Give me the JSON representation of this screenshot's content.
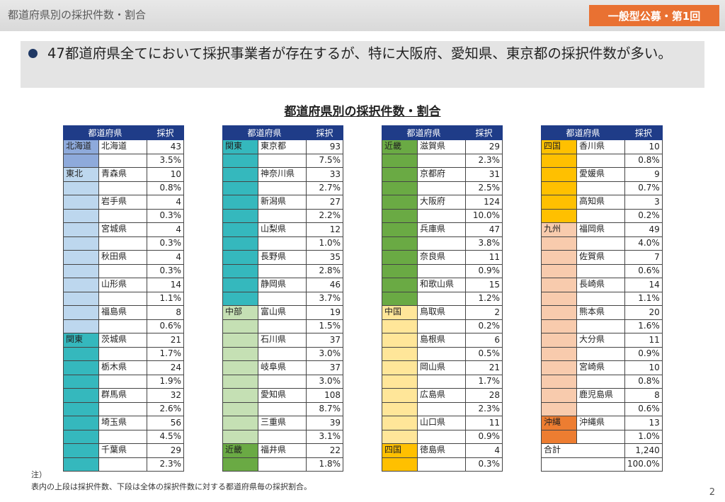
{
  "header": {
    "title": "都道府県別の採択件数・割合",
    "badge": "一般型公募・第1回"
  },
  "summary": {
    "text": "47都道府県全てにおいて採択事業者が存在するが、特に大阪府、愛知県、東京都の採択件数が多い。"
  },
  "table_title": "都道府県別の採択件数・割合",
  "columns": {
    "prefecture": "都道府県",
    "count": "採択"
  },
  "region_colors": {
    "北海道": "#8eaadb",
    "東北": "#bdd7ee",
    "関東": "#35b8bd",
    "中部": "#c5e0b4",
    "近畿": "#6aaa44",
    "中国": "#ffe699",
    "四国": "#ffc000",
    "九州": "#f8cbad",
    "沖縄": "#ed7d31"
  },
  "tables": [
    {
      "rows": [
        {
          "region": "北海道",
          "name": "北海道",
          "count": "43",
          "pct": "3.5%"
        },
        {
          "region": "東北",
          "name": "青森県",
          "count": "10",
          "pct": "0.8%"
        },
        {
          "region": "東北",
          "name": "岩手県",
          "count": "4",
          "pct": "0.3%"
        },
        {
          "region": "東北",
          "name": "宮城県",
          "count": "4",
          "pct": "0.3%"
        },
        {
          "region": "東北",
          "name": "秋田県",
          "count": "4",
          "pct": "0.3%"
        },
        {
          "region": "東北",
          "name": "山形県",
          "count": "14",
          "pct": "1.1%"
        },
        {
          "region": "東北",
          "name": "福島県",
          "count": "8",
          "pct": "0.6%"
        },
        {
          "region": "関東",
          "name": "茨城県",
          "count": "21",
          "pct": "1.7%"
        },
        {
          "region": "関東",
          "name": "栃木県",
          "count": "24",
          "pct": "1.9%"
        },
        {
          "region": "関東",
          "name": "群馬県",
          "count": "32",
          "pct": "2.6%"
        },
        {
          "region": "関東",
          "name": "埼玉県",
          "count": "56",
          "pct": "4.5%"
        },
        {
          "region": "関東",
          "name": "千葉県",
          "count": "29",
          "pct": "2.3%"
        }
      ]
    },
    {
      "rows": [
        {
          "region": "関東",
          "name": "東京都",
          "count": "93",
          "pct": "7.5%"
        },
        {
          "region": "関東",
          "name": "神奈川県",
          "count": "33",
          "pct": "2.7%"
        },
        {
          "region": "関東",
          "name": "新潟県",
          "count": "27",
          "pct": "2.2%"
        },
        {
          "region": "関東",
          "name": "山梨県",
          "count": "12",
          "pct": "1.0%"
        },
        {
          "region": "関東",
          "name": "長野県",
          "count": "35",
          "pct": "2.8%"
        },
        {
          "region": "関東",
          "name": "静岡県",
          "count": "46",
          "pct": "3.7%"
        },
        {
          "region": "中部",
          "name": "富山県",
          "count": "19",
          "pct": "1.5%"
        },
        {
          "region": "中部",
          "name": "石川県",
          "count": "37",
          "pct": "3.0%"
        },
        {
          "region": "中部",
          "name": "岐阜県",
          "count": "37",
          "pct": "3.0%"
        },
        {
          "region": "中部",
          "name": "愛知県",
          "count": "108",
          "pct": "8.7%"
        },
        {
          "region": "中部",
          "name": "三重県",
          "count": "39",
          "pct": "3.1%"
        },
        {
          "region": "近畿",
          "name": "福井県",
          "count": "22",
          "pct": "1.8%"
        }
      ]
    },
    {
      "rows": [
        {
          "region": "近畿",
          "name": "滋賀県",
          "count": "29",
          "pct": "2.3%"
        },
        {
          "region": "近畿",
          "name": "京都府",
          "count": "31",
          "pct": "2.5%"
        },
        {
          "region": "近畿",
          "name": "大阪府",
          "count": "124",
          "pct": "10.0%"
        },
        {
          "region": "近畿",
          "name": "兵庫県",
          "count": "47",
          "pct": "3.8%"
        },
        {
          "region": "近畿",
          "name": "奈良県",
          "count": "11",
          "pct": "0.9%"
        },
        {
          "region": "近畿",
          "name": "和歌山県",
          "count": "15",
          "pct": "1.2%"
        },
        {
          "region": "中国",
          "name": "鳥取県",
          "count": "2",
          "pct": "0.2%"
        },
        {
          "region": "中国",
          "name": "島根県",
          "count": "6",
          "pct": "0.5%"
        },
        {
          "region": "中国",
          "name": "岡山県",
          "count": "21",
          "pct": "1.7%"
        },
        {
          "region": "中国",
          "name": "広島県",
          "count": "28",
          "pct": "2.3%"
        },
        {
          "region": "中国",
          "name": "山口県",
          "count": "11",
          "pct": "0.9%"
        },
        {
          "region": "四国",
          "name": "徳島県",
          "count": "4",
          "pct": "0.3%"
        }
      ]
    },
    {
      "rows": [
        {
          "region": "四国",
          "name": "香川県",
          "count": "10",
          "pct": "0.8%"
        },
        {
          "region": "四国",
          "name": "愛媛県",
          "count": "9",
          "pct": "0.7%"
        },
        {
          "region": "四国",
          "name": "高知県",
          "count": "3",
          "pct": "0.2%"
        },
        {
          "region": "九州",
          "name": "福岡県",
          "count": "49",
          "pct": "4.0%"
        },
        {
          "region": "九州",
          "name": "佐賀県",
          "count": "7",
          "pct": "0.6%"
        },
        {
          "region": "九州",
          "name": "長崎県",
          "count": "14",
          "pct": "1.1%"
        },
        {
          "region": "九州",
          "name": "熊本県",
          "count": "20",
          "pct": "1.6%"
        },
        {
          "region": "九州",
          "name": "大分県",
          "count": "11",
          "pct": "0.9%"
        },
        {
          "region": "九州",
          "name": "宮崎県",
          "count": "10",
          "pct": "0.8%"
        },
        {
          "region": "九州",
          "name": "鹿児島県",
          "count": "8",
          "pct": "0.6%"
        },
        {
          "region": "沖縄",
          "name": "沖縄県",
          "count": "13",
          "pct": "1.0%"
        }
      ],
      "total": {
        "label": "合計",
        "count": "1,240",
        "pct": "100.0%"
      }
    }
  ],
  "note": {
    "line1": "注）",
    "line2": "表内の上段は採択件数、下段は全体の採択件数に対する都道府県毎の採択割合。"
  },
  "page_number": "2"
}
